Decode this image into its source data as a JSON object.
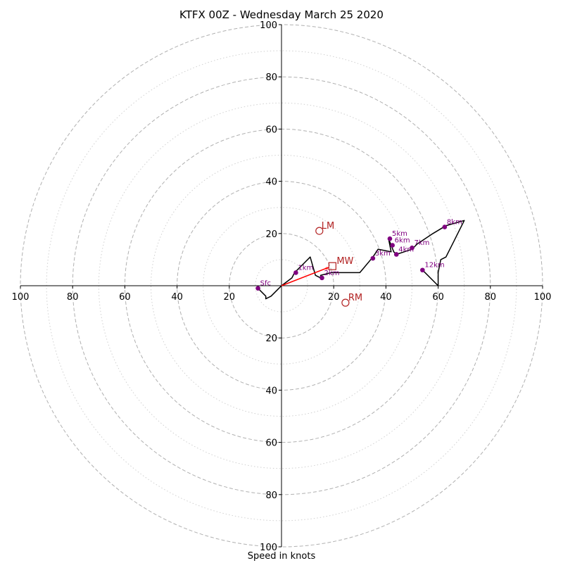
{
  "chart_data": {
    "type": "hodograph",
    "title": "KTFX 00Z - Wednesday March 25 2020",
    "xlabel": "Speed in knots",
    "max_speed": 100,
    "ring_labels": [
      20,
      40,
      60,
      80,
      100
    ],
    "dashed_rings": [
      20,
      40,
      60,
      80,
      100
    ],
    "dotted_rings": [
      10,
      30,
      50,
      70,
      90
    ],
    "hodograph_path": [
      [
        -9,
        -1
      ],
      [
        -6,
        -4
      ],
      [
        -6,
        -5
      ],
      [
        -4,
        -4
      ],
      [
        -1,
        -1
      ],
      [
        0,
        0
      ],
      [
        4,
        3
      ],
      [
        5,
        5
      ],
      [
        9,
        9
      ],
      [
        11,
        11
      ],
      [
        13,
        4
      ],
      [
        15,
        3
      ],
      [
        15,
        4
      ],
      [
        19,
        5
      ],
      [
        24,
        5
      ],
      [
        30,
        5
      ],
      [
        35,
        11
      ],
      [
        37,
        14
      ],
      [
        42,
        13
      ],
      [
        41,
        18
      ],
      [
        43,
        13
      ],
      [
        44,
        12
      ],
      [
        47,
        13
      ],
      [
        50,
        14
      ],
      [
        52,
        16
      ],
      [
        55,
        18
      ],
      [
        58,
        20
      ],
      [
        63,
        23
      ],
      [
        70,
        25
      ],
      [
        68,
        21
      ],
      [
        66,
        17
      ],
      [
        64,
        13
      ],
      [
        63,
        11
      ],
      [
        61,
        10
      ],
      [
        60,
        5
      ],
      [
        60,
        2
      ],
      [
        60,
        0
      ],
      [
        54,
        6
      ]
    ],
    "height_markers": [
      {
        "label": "Sfc",
        "u": -9,
        "v": -1
      },
      {
        "label": "1km",
        "u": 5.5,
        "v": 5
      },
      {
        "label": "2km",
        "u": 15.5,
        "v": 3
      },
      {
        "label": "3km",
        "u": 35,
        "v": 10.5
      },
      {
        "label": "4km",
        "u": 44,
        "v": 12
      },
      {
        "label": "5km",
        "u": 41.5,
        "v": 18
      },
      {
        "label": "6km",
        "u": 42.5,
        "v": 15.5
      },
      {
        "label": "7km",
        "u": 50,
        "v": 14.5
      },
      {
        "label": "8km",
        "u": 62.5,
        "v": 22.5
      },
      {
        "label": "12km",
        "u": 54,
        "v": 6
      }
    ],
    "storm_motion": {
      "lm": {
        "label": "LM",
        "u": 14.5,
        "v": 21
      },
      "mw": {
        "label": "MW",
        "u": 19.5,
        "v": 7.5
      },
      "rm": {
        "label": "RM",
        "u": 24.5,
        "v": -6.5
      },
      "shear_vector": {
        "u_end": 18,
        "v_end": 7
      }
    },
    "colors": {
      "path": "#000000",
      "marker": "#800080",
      "storm": "#b22222",
      "shear": "#ff0000",
      "ring": "#b0b0b0"
    }
  }
}
